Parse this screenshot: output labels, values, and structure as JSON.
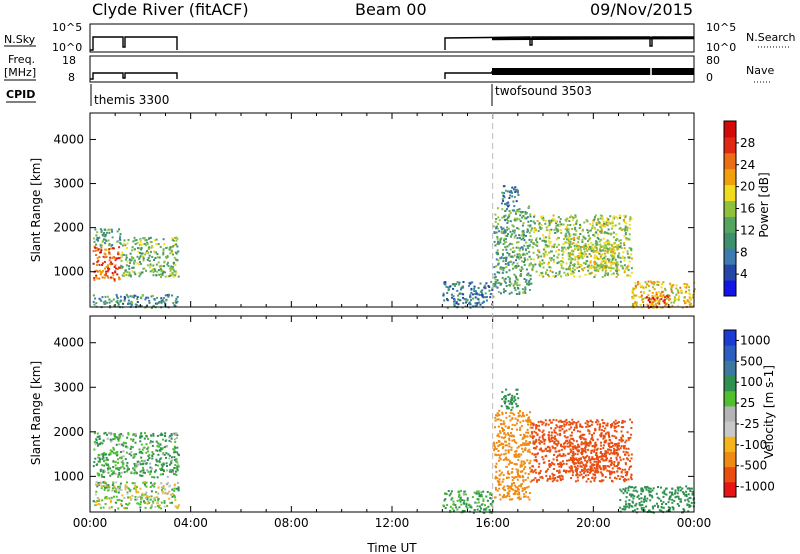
{
  "header": {
    "title": "Clyde River (fitACF)",
    "beam": "Beam 00",
    "date": "09/Nov/2015"
  },
  "strips": {
    "nsky_label": "N.Sky",
    "nsky_hi": "10^5",
    "nsky_lo": "10^0",
    "nsearch_label": "N.Search",
    "nsearch_hi": "10^5",
    "nsearch_lo": "10^0",
    "freq_label_1": "Freq.",
    "freq_label_2": "[MHz]",
    "freq_hi": "18",
    "freq_lo": "8",
    "nave_label": "Nave",
    "nave_hi": "80",
    "nave_lo": "0",
    "cpid_label": "CPID",
    "programs": [
      {
        "name": "themis 3300",
        "start_hour": 0
      },
      {
        "name": "twofsound 3503",
        "start_hour": 16
      }
    ]
  },
  "colors": {
    "power_scale": [
      "#1414e6",
      "#2346a8",
      "#3c7ab0",
      "#3d8f6e",
      "#55a560",
      "#8fc23c",
      "#f0dc1e",
      "#f0a00a",
      "#ec6e14",
      "#e02814",
      "#d40a0a"
    ],
    "velocity_scale": [
      "#e61414",
      "#e94e10",
      "#ef8b12",
      "#f4b41a",
      "#c8c8c8",
      "#b4b4b4",
      "#50c030",
      "#2f9050",
      "#3c78a0",
      "#2a5fbf",
      "#1a3cd2"
    ]
  },
  "chart_data": [
    {
      "type": "heatmap",
      "panel": "power",
      "xlabel": "",
      "ylabel": "Slant Range [km]",
      "xlim_hours": [
        0,
        24
      ],
      "ylim": [
        200,
        4600
      ],
      "yticks": [
        1000,
        2000,
        3000,
        4000
      ],
      "colorbar": {
        "label": "Power [dB]",
        "range": [
          0,
          32
        ],
        "ticks": [
          4,
          8,
          12,
          16,
          20,
          24,
          28
        ]
      },
      "regions": [
        {
          "x": [
            0.1,
            1.2
          ],
          "y": [
            800,
            1600
          ],
          "level": 26
        },
        {
          "x": [
            0.1,
            1.2
          ],
          "y": [
            1600,
            2000
          ],
          "level": 12
        },
        {
          "x": [
            1.2,
            3.5
          ],
          "y": [
            900,
            1800
          ],
          "level": 14
        },
        {
          "x": [
            0.1,
            3.5
          ],
          "y": [
            200,
            500
          ],
          "level": 10
        },
        {
          "x": [
            14.0,
            16.0
          ],
          "y": [
            200,
            800
          ],
          "level": 8
        },
        {
          "x": [
            16.0,
            17.5
          ],
          "y": [
            500,
            2500
          ],
          "level": 12
        },
        {
          "x": [
            17.5,
            21.5
          ],
          "y": [
            900,
            2300
          ],
          "level": 16
        },
        {
          "x": [
            19.0,
            21.0
          ],
          "y": [
            1100,
            1700
          ],
          "level": 18
        },
        {
          "x": [
            21.5,
            24.0
          ],
          "y": [
            200,
            800
          ],
          "level": 20
        },
        {
          "x": [
            22.0,
            23.0
          ],
          "y": [
            200,
            500
          ],
          "level": 26
        },
        {
          "x": [
            16.3,
            17.0
          ],
          "y": [
            2500,
            3000
          ],
          "level": 8
        }
      ]
    },
    {
      "type": "heatmap",
      "panel": "velocity",
      "xlabel": "Time UT",
      "ylabel": "Slant Range [km]",
      "xlim_hours": [
        0,
        24
      ],
      "xticks": [
        "00:00",
        "04:00",
        "08:00",
        "12:00",
        "16:00",
        "20:00",
        "00:00"
      ],
      "ylim": [
        200,
        4600
      ],
      "yticks": [
        1000,
        2000,
        3000,
        4000
      ],
      "colorbar": {
        "label": "Velocity [m s-1]",
        "ticks": [
          "1000",
          "500",
          "100",
          "25",
          "-25",
          "-100",
          "-500",
          "-1000"
        ]
      },
      "regions": [
        {
          "x": [
            0.1,
            3.5
          ],
          "y": [
            1000,
            2000
          ],
          "level": 100
        },
        {
          "x": [
            0.1,
            3.5
          ],
          "y": [
            300,
            900
          ],
          "level": 25
        },
        {
          "x": [
            14.0,
            16.0
          ],
          "y": [
            200,
            700
          ],
          "level": 120
        },
        {
          "x": [
            16.0,
            17.5
          ],
          "y": [
            500,
            2500
          ],
          "level": -300
        },
        {
          "x": [
            17.5,
            21.5
          ],
          "y": [
            900,
            2300
          ],
          "level": -600
        },
        {
          "x": [
            19.0,
            21.0
          ],
          "y": [
            1100,
            1800
          ],
          "level": -900
        },
        {
          "x": [
            21.0,
            24.0
          ],
          "y": [
            200,
            800
          ],
          "level": 200
        },
        {
          "x": [
            16.3,
            17.0
          ],
          "y": [
            2500,
            3000
          ],
          "level": 300
        }
      ]
    }
  ]
}
